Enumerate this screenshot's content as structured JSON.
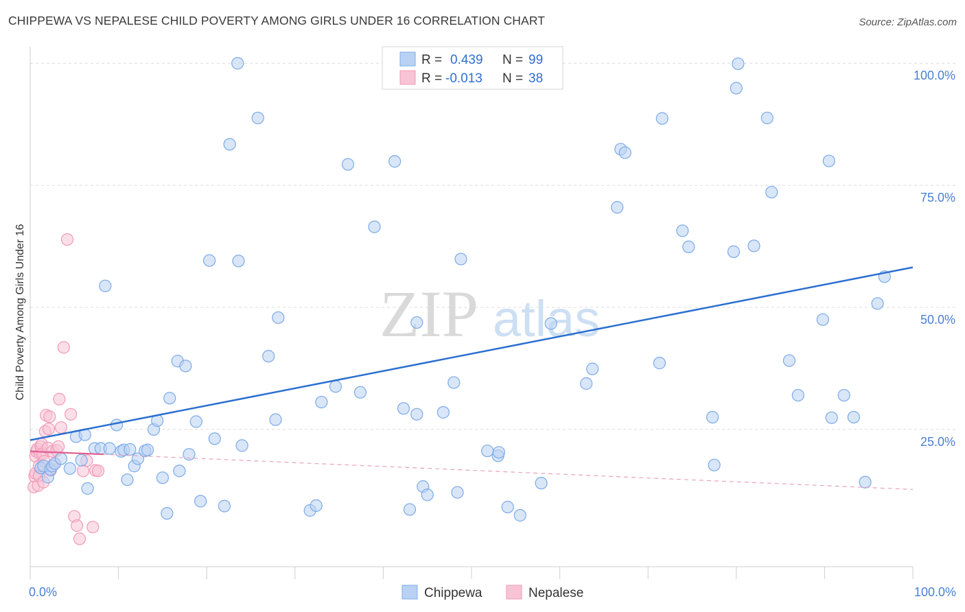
{
  "title": "CHIPPEWA VS NEPALESE CHILD POVERTY AMONG GIRLS UNDER 16 CORRELATION CHART",
  "source": "Source: ZipAtlas.com",
  "watermark": {
    "zip": "ZIP",
    "atlas": "atlas"
  },
  "chart_data": {
    "type": "scatter",
    "title": "CHIPPEWA VS NEPALESE CHILD POVERTY AMONG GIRLS UNDER 16 CORRELATION CHART",
    "xlabel": "",
    "ylabel": "Child Poverty Among Girls Under 16",
    "xlim": [
      0,
      100
    ],
    "ylim": [
      -2,
      102
    ],
    "x_tick_labels": [
      "0.0%",
      "100.0%"
    ],
    "y_ticks": [
      25,
      50,
      75,
      100
    ],
    "y_tick_labels": [
      "25.0%",
      "50.0%",
      "75.0%",
      "100.0%"
    ],
    "legend_position": "top-center",
    "stats": [
      {
        "r_label": "R =",
        "r": "0.439",
        "n_label": "N =",
        "n": "99"
      },
      {
        "r_label": "R =",
        "r": "-0.013",
        "n_label": "N =",
        "n": "38"
      }
    ],
    "series": [
      {
        "name": "Chippewa",
        "color": "#7aaae8",
        "line_color": "#2b6fd0",
        "trend": {
          "x": [
            0,
            100
          ],
          "y": [
            22.8,
            58.2
          ]
        },
        "points": [
          [
            1.2,
            17.1
          ],
          [
            1.5,
            17.5
          ],
          [
            2.0,
            15.2
          ],
          [
            2.3,
            16.8
          ],
          [
            2.5,
            17.5
          ],
          [
            2.8,
            18.0
          ],
          [
            3.5,
            19.0
          ],
          [
            4.5,
            17.0
          ],
          [
            5.2,
            23.5
          ],
          [
            5.8,
            18.7
          ],
          [
            6.2,
            23.9
          ],
          [
            6.5,
            12.9
          ],
          [
            7.3,
            21.1
          ],
          [
            8.0,
            21.1
          ],
          [
            8.5,
            54.4
          ],
          [
            9.0,
            21.1
          ],
          [
            9.8,
            25.9
          ],
          [
            10.3,
            20.5
          ],
          [
            10.6,
            20.8
          ],
          [
            11.0,
            14.7
          ],
          [
            11.3,
            20.9
          ],
          [
            11.8,
            17.5
          ],
          [
            12.2,
            19.0
          ],
          [
            13.0,
            20.6
          ],
          [
            13.3,
            20.8
          ],
          [
            14.0,
            25.0
          ],
          [
            14.4,
            26.8
          ],
          [
            15.0,
            15.1
          ],
          [
            15.5,
            7.8
          ],
          [
            15.8,
            31.4
          ],
          [
            16.7,
            39.0
          ],
          [
            16.9,
            16.5
          ],
          [
            17.6,
            38.0
          ],
          [
            18.0,
            19.9
          ],
          [
            18.8,
            26.6
          ],
          [
            19.3,
            10.3
          ],
          [
            20.3,
            59.6
          ],
          [
            20.9,
            23.1
          ],
          [
            22.0,
            9.3
          ],
          [
            22.6,
            83.4
          ],
          [
            23.5,
            100.0
          ],
          [
            23.6,
            59.5
          ],
          [
            24.0,
            21.7
          ],
          [
            25.8,
            88.8
          ],
          [
            27.0,
            40.0
          ],
          [
            27.8,
            27.0
          ],
          [
            28.1,
            47.9
          ],
          [
            31.7,
            8.4
          ],
          [
            32.4,
            9.4
          ],
          [
            33.0,
            30.6
          ],
          [
            34.6,
            33.8
          ],
          [
            36.0,
            79.3
          ],
          [
            37.4,
            32.6
          ],
          [
            39.0,
            66.5
          ],
          [
            41.3,
            79.9
          ],
          [
            42.3,
            29.3
          ],
          [
            43.0,
            8.6
          ],
          [
            43.8,
            46.9
          ],
          [
            43.8,
            28.1
          ],
          [
            44.5,
            13.3
          ],
          [
            45.0,
            11.6
          ],
          [
            46.8,
            28.5
          ],
          [
            48.0,
            34.6
          ],
          [
            48.4,
            12.1
          ],
          [
            48.8,
            59.9
          ],
          [
            51.8,
            20.6
          ],
          [
            53.0,
            19.6
          ],
          [
            53.1,
            20.3
          ],
          [
            54.1,
            9.1
          ],
          [
            55.5,
            7.4
          ],
          [
            57.9,
            14.0
          ],
          [
            59.0,
            46.7
          ],
          [
            63.0,
            34.4
          ],
          [
            63.7,
            37.4
          ],
          [
            66.5,
            70.5
          ],
          [
            66.9,
            82.4
          ],
          [
            67.4,
            81.7
          ],
          [
            71.3,
            38.6
          ],
          [
            71.6,
            88.7
          ],
          [
            73.9,
            65.7
          ],
          [
            74.6,
            62.4
          ],
          [
            77.3,
            27.5
          ],
          [
            77.5,
            17.7
          ],
          [
            79.7,
            61.4
          ],
          [
            80.0,
            94.9
          ],
          [
            80.2,
            99.9
          ],
          [
            82.0,
            62.6
          ],
          [
            83.5,
            88.8
          ],
          [
            84.0,
            73.6
          ],
          [
            86.0,
            39.1
          ],
          [
            87.0,
            32.0
          ],
          [
            89.8,
            47.5
          ],
          [
            90.5,
            80.0
          ],
          [
            90.8,
            27.4
          ],
          [
            92.2,
            32.0
          ],
          [
            93.3,
            27.5
          ],
          [
            94.6,
            14.2
          ],
          [
            96.0,
            50.8
          ],
          [
            96.8,
            56.3
          ]
        ]
      },
      {
        "name": "Nepalese",
        "color": "#f199b8",
        "line_color": "#e06090",
        "trend": {
          "x": [
            0,
            8.3
          ],
          "y": [
            20.5,
            19.9
          ]
        },
        "trend_extension": {
          "x": [
            8.3,
            100
          ],
          "y": [
            19.9,
            12.7
          ]
        },
        "points": [
          [
            0.4,
            13.2
          ],
          [
            0.5,
            15.4
          ],
          [
            0.6,
            16.0
          ],
          [
            0.6,
            19.5
          ],
          [
            0.7,
            20.5
          ],
          [
            0.8,
            21.0
          ],
          [
            0.9,
            13.5
          ],
          [
            1.0,
            15.5
          ],
          [
            1.0,
            17.5
          ],
          [
            1.1,
            20.0
          ],
          [
            1.2,
            21.5
          ],
          [
            1.3,
            22.0
          ],
          [
            1.4,
            20.0
          ],
          [
            1.5,
            14.2
          ],
          [
            1.6,
            18.5
          ],
          [
            1.7,
            24.6
          ],
          [
            1.8,
            27.9
          ],
          [
            2.0,
            21.2
          ],
          [
            2.1,
            25.1
          ],
          [
            2.2,
            27.6
          ],
          [
            2.3,
            16.6
          ],
          [
            2.5,
            20.5
          ],
          [
            2.8,
            18.0
          ],
          [
            3.0,
            20.7
          ],
          [
            3.2,
            21.5
          ],
          [
            3.3,
            31.2
          ],
          [
            3.5,
            25.4
          ],
          [
            3.8,
            41.8
          ],
          [
            4.2,
            63.9
          ],
          [
            4.6,
            28.1
          ],
          [
            5.0,
            7.2
          ],
          [
            5.3,
            5.3
          ],
          [
            5.6,
            2.6
          ],
          [
            6.0,
            16.5
          ],
          [
            6.4,
            18.6
          ],
          [
            7.1,
            5.0
          ],
          [
            7.4,
            16.6
          ],
          [
            7.7,
            16.5
          ]
        ]
      }
    ]
  }
}
